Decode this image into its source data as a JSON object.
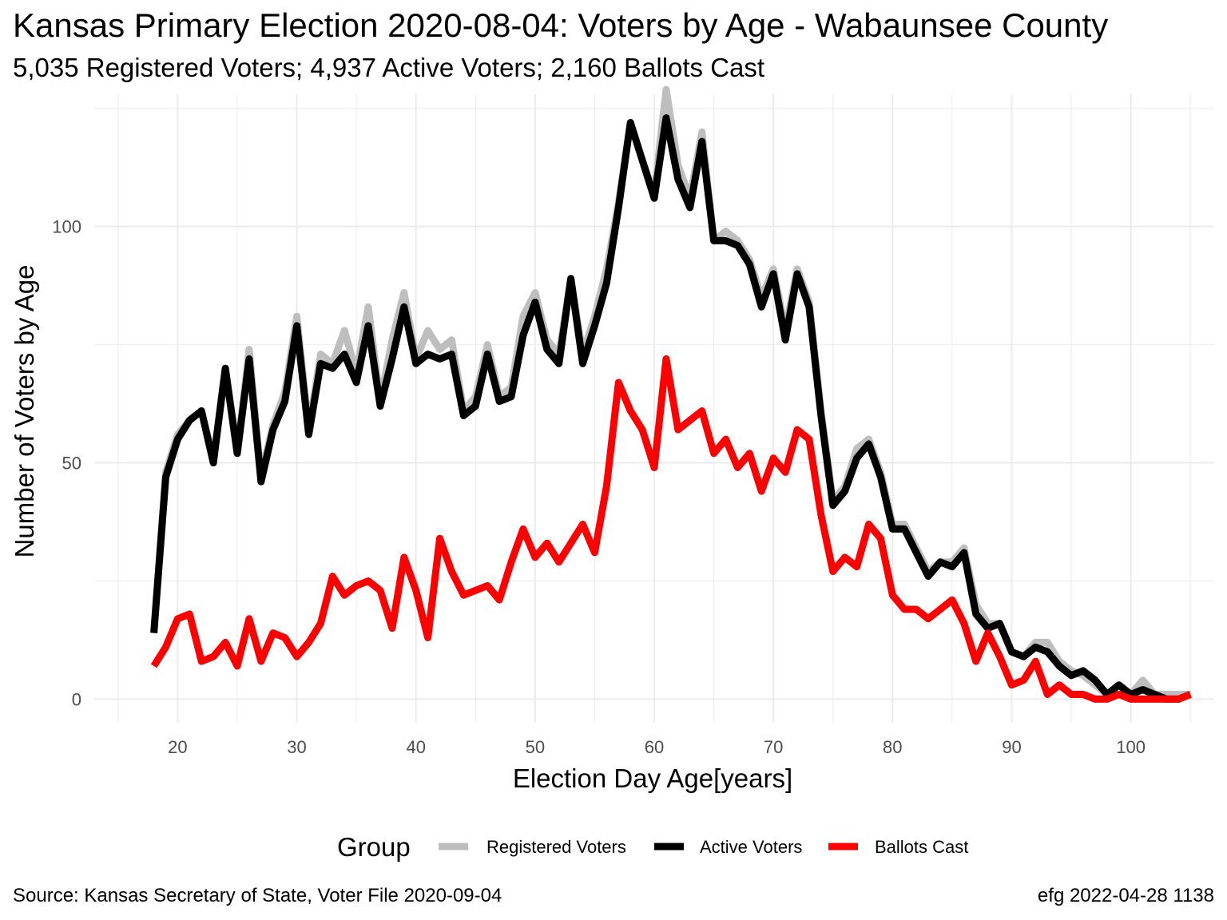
{
  "header": {
    "title": "Kansas Primary Election 2020-08-04:  Voters by Age - Wabaunsee County",
    "subtitle": "5,035 Registered Voters; 4,937 Active Voters; 2,160 Ballots Cast"
  },
  "footer": {
    "source": "Source:  Kansas Secretary of State, Voter File  2020-09-04",
    "stamp": "efg 2022-04-28 1138"
  },
  "chart_data": {
    "type": "line",
    "xlabel": "Election Day Age[years]",
    "ylabel": "Number of Voters by Age",
    "xlim": [
      13,
      107
    ],
    "ylim": [
      -5,
      128
    ],
    "x_ticks": [
      20,
      30,
      40,
      50,
      60,
      70,
      80,
      90,
      100
    ],
    "y_ticks": [
      0,
      50,
      100
    ],
    "grid": true,
    "legend": {
      "title": "Group",
      "position": "bottom"
    },
    "x": [
      18,
      19,
      20,
      21,
      22,
      23,
      24,
      25,
      26,
      27,
      28,
      29,
      30,
      31,
      32,
      33,
      34,
      35,
      36,
      37,
      38,
      39,
      40,
      41,
      42,
      43,
      44,
      45,
      46,
      47,
      48,
      49,
      50,
      51,
      52,
      53,
      54,
      55,
      56,
      57,
      58,
      59,
      60,
      61,
      62,
      63,
      64,
      65,
      66,
      67,
      68,
      69,
      70,
      71,
      72,
      73,
      74,
      75,
      76,
      77,
      78,
      79,
      80,
      81,
      82,
      83,
      84,
      85,
      86,
      87,
      88,
      89,
      90,
      91,
      92,
      93,
      94,
      95,
      96,
      97,
      98,
      99,
      100,
      101,
      102,
      103,
      104,
      105
    ],
    "series": [
      {
        "name": "Registered Voters",
        "color": "#bebebe",
        "values": [
          14,
          48,
          56,
          59,
          61,
          51,
          70,
          52,
          74,
          47,
          58,
          65,
          81,
          57,
          73,
          71,
          78,
          69,
          83,
          63,
          76,
          86,
          72,
          78,
          74,
          76,
          61,
          64,
          75,
          64,
          66,
          81,
          86,
          76,
          73,
          89,
          73,
          81,
          91,
          105,
          122,
          114,
          107,
          129,
          113,
          106,
          120,
          97,
          99,
          97,
          93,
          85,
          91,
          78,
          91,
          84,
          61,
          42,
          45,
          53,
          55,
          48,
          37,
          37,
          32,
          27,
          29,
          29,
          32,
          20,
          16,
          16,
          10,
          9,
          12,
          12,
          8,
          6,
          5,
          3,
          1,
          1,
          1,
          4,
          1,
          1,
          1,
          1
        ]
      },
      {
        "name": "Active Voters",
        "color": "#000000",
        "values": [
          14,
          47,
          55,
          59,
          61,
          50,
          70,
          52,
          72,
          46,
          57,
          63,
          79,
          56,
          71,
          70,
          73,
          67,
          79,
          62,
          72,
          83,
          71,
          73,
          72,
          73,
          60,
          62,
          73,
          63,
          64,
          77,
          84,
          74,
          71,
          89,
          71,
          79,
          88,
          104,
          122,
          114,
          106,
          123,
          110,
          104,
          118,
          97,
          97,
          96,
          92,
          83,
          90,
          76,
          90,
          83,
          60,
          41,
          44,
          51,
          54,
          47,
          36,
          36,
          31,
          26,
          29,
          28,
          31,
          18,
          15,
          16,
          10,
          9,
          11,
          10,
          7,
          5,
          6,
          4,
          1,
          3,
          1,
          2,
          1,
          0,
          0,
          1
        ]
      },
      {
        "name": "Ballots Cast",
        "color": "#ff0000",
        "values": [
          7,
          11,
          17,
          18,
          8,
          9,
          12,
          7,
          17,
          8,
          14,
          13,
          9,
          12,
          16,
          26,
          22,
          24,
          25,
          23,
          15,
          30,
          23,
          13,
          34,
          27,
          22,
          23,
          24,
          21,
          29,
          36,
          30,
          33,
          29,
          33,
          37,
          31,
          45,
          67,
          61,
          57,
          49,
          72,
          57,
          59,
          61,
          52,
          55,
          49,
          52,
          44,
          51,
          48,
          57,
          55,
          39,
          27,
          30,
          28,
          37,
          34,
          22,
          19,
          19,
          17,
          19,
          21,
          16,
          8,
          14,
          9,
          3,
          4,
          8,
          1,
          3,
          1,
          1,
          0,
          0,
          1,
          0,
          0,
          0,
          0,
          0,
          1
        ]
      }
    ]
  }
}
